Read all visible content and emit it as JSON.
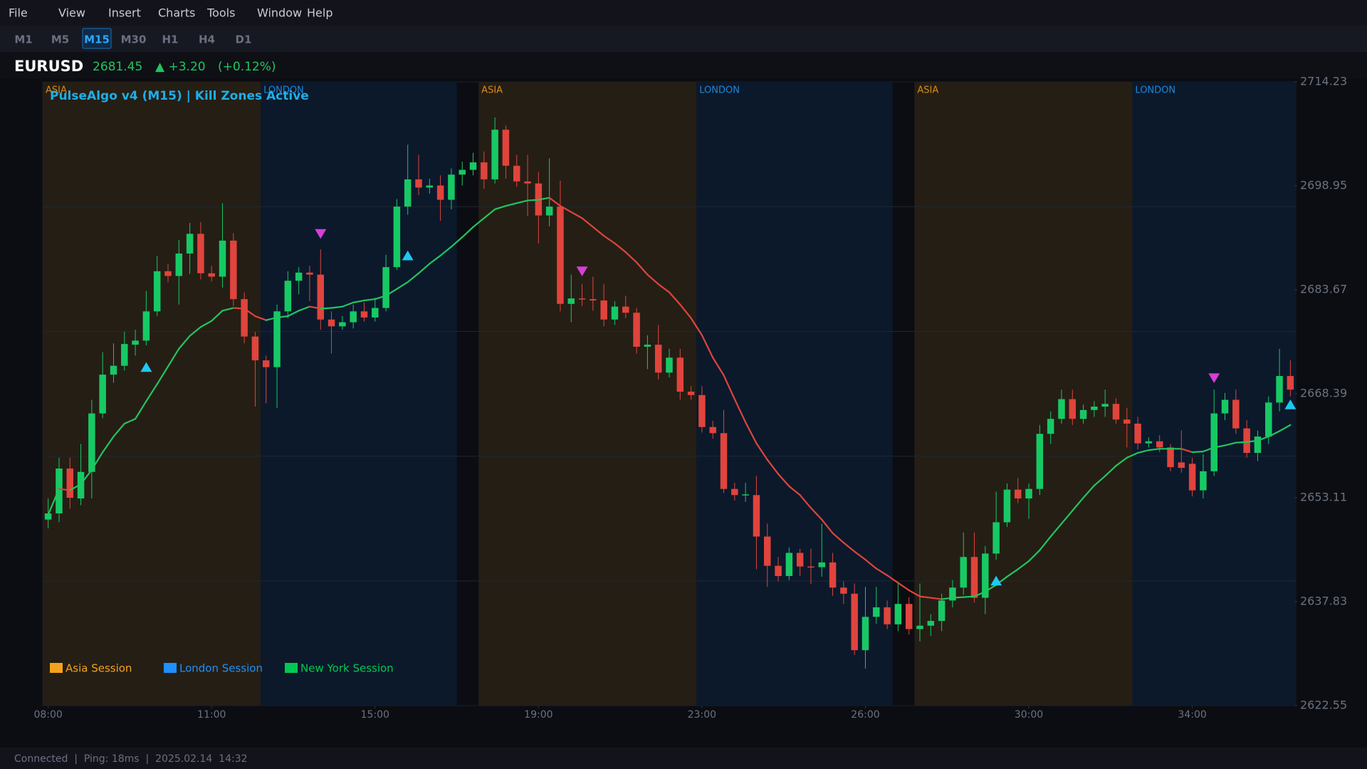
{
  "menu": [
    "File",
    "View",
    "Insert",
    "Charts",
    "Tools",
    "Window",
    "Help"
  ],
  "timeframes": [
    {
      "label": "M1",
      "active": false
    },
    {
      "label": "M5",
      "active": false
    },
    {
      "label": "M15",
      "active": true
    },
    {
      "label": "M30",
      "active": false
    },
    {
      "label": "H1",
      "active": false
    },
    {
      "label": "H4",
      "active": false
    },
    {
      "label": "D1",
      "active": false
    }
  ],
  "header": {
    "symbol": "EURUSD",
    "price": "2681.45",
    "change": "▲ +3.20",
    "change_pct": "(+0.12%)"
  },
  "status": "Connected  |  Ping: 18ms  |  2025.02.14  14:32",
  "chart_data": {
    "type": "candlestick",
    "title": "PulseAlgo v4 (M15)  |  Kill Zones Active",
    "ylim": [
      2622.55,
      2714.23
    ],
    "yticks": [
      2622.55,
      2637.83,
      2653.11,
      2668.39,
      2683.67,
      2698.95,
      2714.23
    ],
    "ygrid": [
      2640.87,
      2659.21,
      2677.55,
      2695.89
    ],
    "xlim": [
      -0.5,
      114.5
    ],
    "xticks": [
      {
        "value": 0,
        "label": "08:00"
      },
      {
        "value": 15,
        "label": "11:00"
      },
      {
        "value": 30,
        "label": "15:00"
      },
      {
        "value": 45,
        "label": "19:00"
      },
      {
        "value": 60,
        "label": "23:00"
      },
      {
        "value": 75,
        "label": "26:00"
      },
      {
        "value": 90,
        "label": "30:00"
      },
      {
        "value": 105,
        "label": "34:00"
      }
    ],
    "up_color": "#17c964",
    "down_color": "#e0443c",
    "open": [
      2649.9,
      2650.8,
      2657.4,
      2653.0,
      2656.9,
      2665.5,
      2671.2,
      2672.5,
      2675.6,
      2676.2,
      2680.5,
      2686.4,
      2685.7,
      2689.0,
      2691.9,
      2686.1,
      2685.6,
      2690.9,
      2682.3,
      2676.8,
      2673.3,
      2672.3,
      2680.5,
      2685.0,
      2686.2,
      2685.9,
      2679.3,
      2678.3,
      2678.9,
      2680.5,
      2679.6,
      2681.0,
      2687.0,
      2695.9,
      2699.9,
      2698.7,
      2699.0,
      2696.9,
      2700.6,
      2701.3,
      2702.4,
      2699.9,
      2707.2,
      2701.9,
      2699.6,
      2699.3,
      2694.6,
      2695.9,
      2681.6,
      2682.4,
      2682.3,
      2682.1,
      2679.3,
      2681.2,
      2680.3,
      2675.3,
      2675.6,
      2671.5,
      2673.7,
      2668.7,
      2668.2,
      2663.5,
      2662.6,
      2654.4,
      2653.5,
      2653.5,
      2647.4,
      2643.1,
      2641.6,
      2645.0,
      2643.0,
      2642.9,
      2643.6,
      2639.9,
      2639.0,
      2630.7,
      2635.6,
      2637.0,
      2634.5,
      2637.5,
      2633.8,
      2634.3,
      2635.0,
      2638.0,
      2639.9,
      2644.4,
      2638.4,
      2644.9,
      2649.5,
      2654.3,
      2653.0,
      2654.4,
      2662.5,
      2664.7,
      2667.6,
      2664.7,
      2666.0,
      2666.5,
      2666.9,
      2664.6,
      2664.0,
      2661.1,
      2661.4,
      2660.5,
      2658.3,
      2658.1,
      2654.2,
      2657.0,
      2665.5,
      2667.5,
      2663.3,
      2659.7,
      2662.1,
      2667.1,
      2671.0
    ],
    "high": [
      2653.0,
      2659.0,
      2659.0,
      2661.0,
      2667.5,
      2674.5,
      2675.8,
      2677.5,
      2677.8,
      2683.5,
      2688.6,
      2687.5,
      2691.0,
      2693.5,
      2693.6,
      2687.2,
      2696.4,
      2692.0,
      2683.3,
      2677.5,
      2674.0,
      2681.5,
      2686.4,
      2687.0,
      2687.2,
      2689.6,
      2680.5,
      2679.8,
      2681.5,
      2681.8,
      2682.5,
      2688.8,
      2697.0,
      2705.0,
      2703.5,
      2700.0,
      2700.5,
      2701.5,
      2702.5,
      2703.8,
      2704.0,
      2709.0,
      2707.8,
      2703.5,
      2703.5,
      2701.0,
      2703.0,
      2699.7,
      2685.9,
      2684.5,
      2685.6,
      2684.5,
      2682.0,
      2682.8,
      2681.0,
      2677.0,
      2678.5,
      2675.0,
      2675.0,
      2669.5,
      2669.5,
      2664.4,
      2666.0,
      2655.3,
      2655.3,
      2656.3,
      2649.3,
      2644.4,
      2645.8,
      2645.6,
      2645.6,
      2649.3,
      2645.0,
      2640.8,
      2640.5,
      2640.0,
      2640.0,
      2638.0,
      2640.5,
      2638.5,
      2640.5,
      2636.0,
      2639.0,
      2641.0,
      2648.0,
      2648.0,
      2646.0,
      2654.0,
      2655.2,
      2656.0,
      2655.2,
      2663.8,
      2665.8,
      2669.0,
      2669.0,
      2666.8,
      2667.3,
      2669.0,
      2667.7,
      2666.3,
      2665.0,
      2662.0,
      2662.3,
      2661.0,
      2663.0,
      2659.0,
      2659.5,
      2669.0,
      2668.5,
      2669.0,
      2664.5,
      2663.0,
      2668.0,
      2675.0,
      2673.3
    ],
    "low": [
      2648.6,
      2649.5,
      2651.5,
      2652.0,
      2653.0,
      2664.8,
      2670.0,
      2671.8,
      2674.0,
      2675.5,
      2679.8,
      2684.8,
      2681.5,
      2686.0,
      2685.2,
      2684.9,
      2684.0,
      2681.3,
      2675.8,
      2666.5,
      2667.0,
      2666.3,
      2679.5,
      2683.0,
      2682.0,
      2677.8,
      2674.3,
      2677.8,
      2678.0,
      2679.0,
      2679.0,
      2680.5,
      2686.6,
      2694.7,
      2697.6,
      2697.8,
      2693.8,
      2695.5,
      2699.0,
      2700.5,
      2698.5,
      2699.3,
      2700.0,
      2698.8,
      2694.5,
      2690.5,
      2693.0,
      2680.5,
      2678.9,
      2681.3,
      2680.6,
      2678.3,
      2678.5,
      2679.5,
      2674.3,
      2672.0,
      2670.5,
      2670.8,
      2667.5,
      2667.5,
      2662.7,
      2661.8,
      2653.8,
      2652.7,
      2652.5,
      2642.6,
      2640.0,
      2640.8,
      2641.0,
      2641.6,
      2640.4,
      2641.5,
      2638.7,
      2637.5,
      2630.0,
      2628.0,
      2634.6,
      2633.8,
      2633.5,
      2633.0,
      2632.0,
      2632.8,
      2633.5,
      2637.0,
      2638.8,
      2637.7,
      2636.0,
      2644.0,
      2648.8,
      2652.3,
      2650.0,
      2653.5,
      2661.0,
      2664.0,
      2663.8,
      2664.0,
      2665.0,
      2665.0,
      2664.0,
      2660.5,
      2660.2,
      2660.5,
      2659.8,
      2657.0,
      2656.8,
      2653.3,
      2653.0,
      2656.3,
      2664.5,
      2662.5,
      2659.0,
      2658.5,
      2661.0,
      2665.8,
      2668.0
    ],
    "close": [
      2650.8,
      2657.4,
      2653.1,
      2656.9,
      2665.5,
      2671.2,
      2672.5,
      2675.7,
      2676.2,
      2680.5,
      2686.4,
      2685.7,
      2689.0,
      2691.9,
      2686.1,
      2685.6,
      2690.9,
      2682.3,
      2676.8,
      2673.3,
      2672.3,
      2680.5,
      2685.0,
      2686.2,
      2685.9,
      2679.3,
      2678.3,
      2678.9,
      2680.5,
      2679.6,
      2681.0,
      2687.0,
      2695.9,
      2699.9,
      2698.7,
      2699.0,
      2696.9,
      2700.6,
      2701.3,
      2702.4,
      2699.9,
      2707.2,
      2701.9,
      2699.6,
      2699.3,
      2694.6,
      2695.9,
      2681.6,
      2682.4,
      2682.3,
      2682.1,
      2679.3,
      2681.2,
      2680.3,
      2675.3,
      2675.6,
      2671.5,
      2673.7,
      2668.7,
      2668.2,
      2663.5,
      2662.6,
      2654.4,
      2653.5,
      2653.6,
      2647.4,
      2643.1,
      2641.6,
      2645.0,
      2643.0,
      2642.9,
      2643.6,
      2639.9,
      2639.0,
      2630.7,
      2635.6,
      2637.0,
      2634.5,
      2637.5,
      2633.8,
      2634.3,
      2635.0,
      2638.0,
      2639.9,
      2644.4,
      2638.4,
      2644.9,
      2649.5,
      2654.3,
      2653.0,
      2654.4,
      2662.5,
      2664.7,
      2667.6,
      2664.7,
      2666.0,
      2666.5,
      2666.9,
      2664.6,
      2664.0,
      2661.1,
      2661.4,
      2660.5,
      2657.6,
      2657.5,
      2654.2,
      2657.0,
      2665.5,
      2667.5,
      2663.3,
      2659.7,
      2662.1,
      2667.1,
      2671.0,
      2669.0
    ],
    "ma": {
      "up_color": "#22c55e",
      "down_color": "#e0443c",
      "values": [
        2650.6,
        2654.4,
        2654.2,
        2655.1,
        2657.2,
        2659.8,
        2662.1,
        2664.0,
        2664.7,
        2667.3,
        2669.8,
        2672.4,
        2675.0,
        2676.9,
        2678.2,
        2679.1,
        2680.6,
        2681.0,
        2680.9,
        2679.8,
        2679.2,
        2679.6,
        2679.8,
        2680.6,
        2681.2,
        2680.9,
        2681.0,
        2681.2,
        2681.8,
        2682.1,
        2682.3,
        2682.8,
        2683.8,
        2684.8,
        2686.1,
        2687.5,
        2688.7,
        2690.0,
        2691.4,
        2692.9,
        2694.2,
        2695.5,
        2696.0,
        2696.4,
        2696.8,
        2696.9,
        2697.2,
        2696.0,
        2695.1,
        2694.2,
        2692.9,
        2691.6,
        2690.5,
        2689.2,
        2687.7,
        2685.9,
        2684.5,
        2683.3,
        2681.5,
        2679.5,
        2677.0,
        2673.7,
        2671.1,
        2667.6,
        2664.2,
        2661.1,
        2658.7,
        2656.6,
        2654.8,
        2653.5,
        2651.6,
        2649.9,
        2647.9,
        2646.5,
        2645.2,
        2644.0,
        2642.7,
        2641.7,
        2640.6,
        2639.5,
        2638.6,
        2638.4,
        2638.2,
        2638.4,
        2638.5,
        2638.6,
        2639.3,
        2640.3,
        2641.5,
        2642.6,
        2643.8,
        2645.4,
        2647.4,
        2649.3,
        2651.2,
        2653.1,
        2654.9,
        2656.3,
        2657.8,
        2659.0,
        2659.7,
        2660.1,
        2660.3,
        2660.3,
        2660.3,
        2659.8,
        2659.9,
        2660.5,
        2660.8,
        2661.2,
        2661.3,
        2661.5,
        2662.1,
        2662.9,
        2663.8
      ]
    },
    "buy_signals": {
      "color": "#1ec8f0",
      "x": [
        9,
        33,
        87,
        114
      ],
      "values": [
        2672.2,
        2688.6,
        2640.8,
        2666.7
      ]
    },
    "sell_signals": {
      "color": "#d63fd6",
      "x": [
        25,
        49,
        107
      ],
      "values": [
        2692.0,
        2686.5,
        2670.8
      ]
    },
    "sessions": [
      {
        "label": "ASIA",
        "start": 0,
        "end": 20,
        "color": "#251e15",
        "label_color": "#d98a1a"
      },
      {
        "label": "LONDON",
        "start": 20,
        "end": 38,
        "color": "#0c192b",
        "label_color": "#1f86d6"
      },
      {
        "label": "ASIA",
        "start": 40,
        "end": 60,
        "color": "#251e15",
        "label_color": "#d98a1a"
      },
      {
        "label": "LONDON",
        "start": 60,
        "end": 78,
        "color": "#0c192b",
        "label_color": "#1f86d6"
      },
      {
        "label": "ASIA",
        "start": 80,
        "end": 100,
        "color": "#251e15",
        "label_color": "#d98a1a"
      },
      {
        "label": "LONDON",
        "start": 100,
        "end": 115,
        "color": "#0c192b",
        "label_color": "#1f86d6"
      }
    ],
    "legend": [
      {
        "name": "Asia Session",
        "color": "#f5a31a"
      },
      {
        "name": "London Session",
        "color": "#1e90ff"
      },
      {
        "name": "New York Session",
        "color": "#00c853"
      }
    ]
  }
}
